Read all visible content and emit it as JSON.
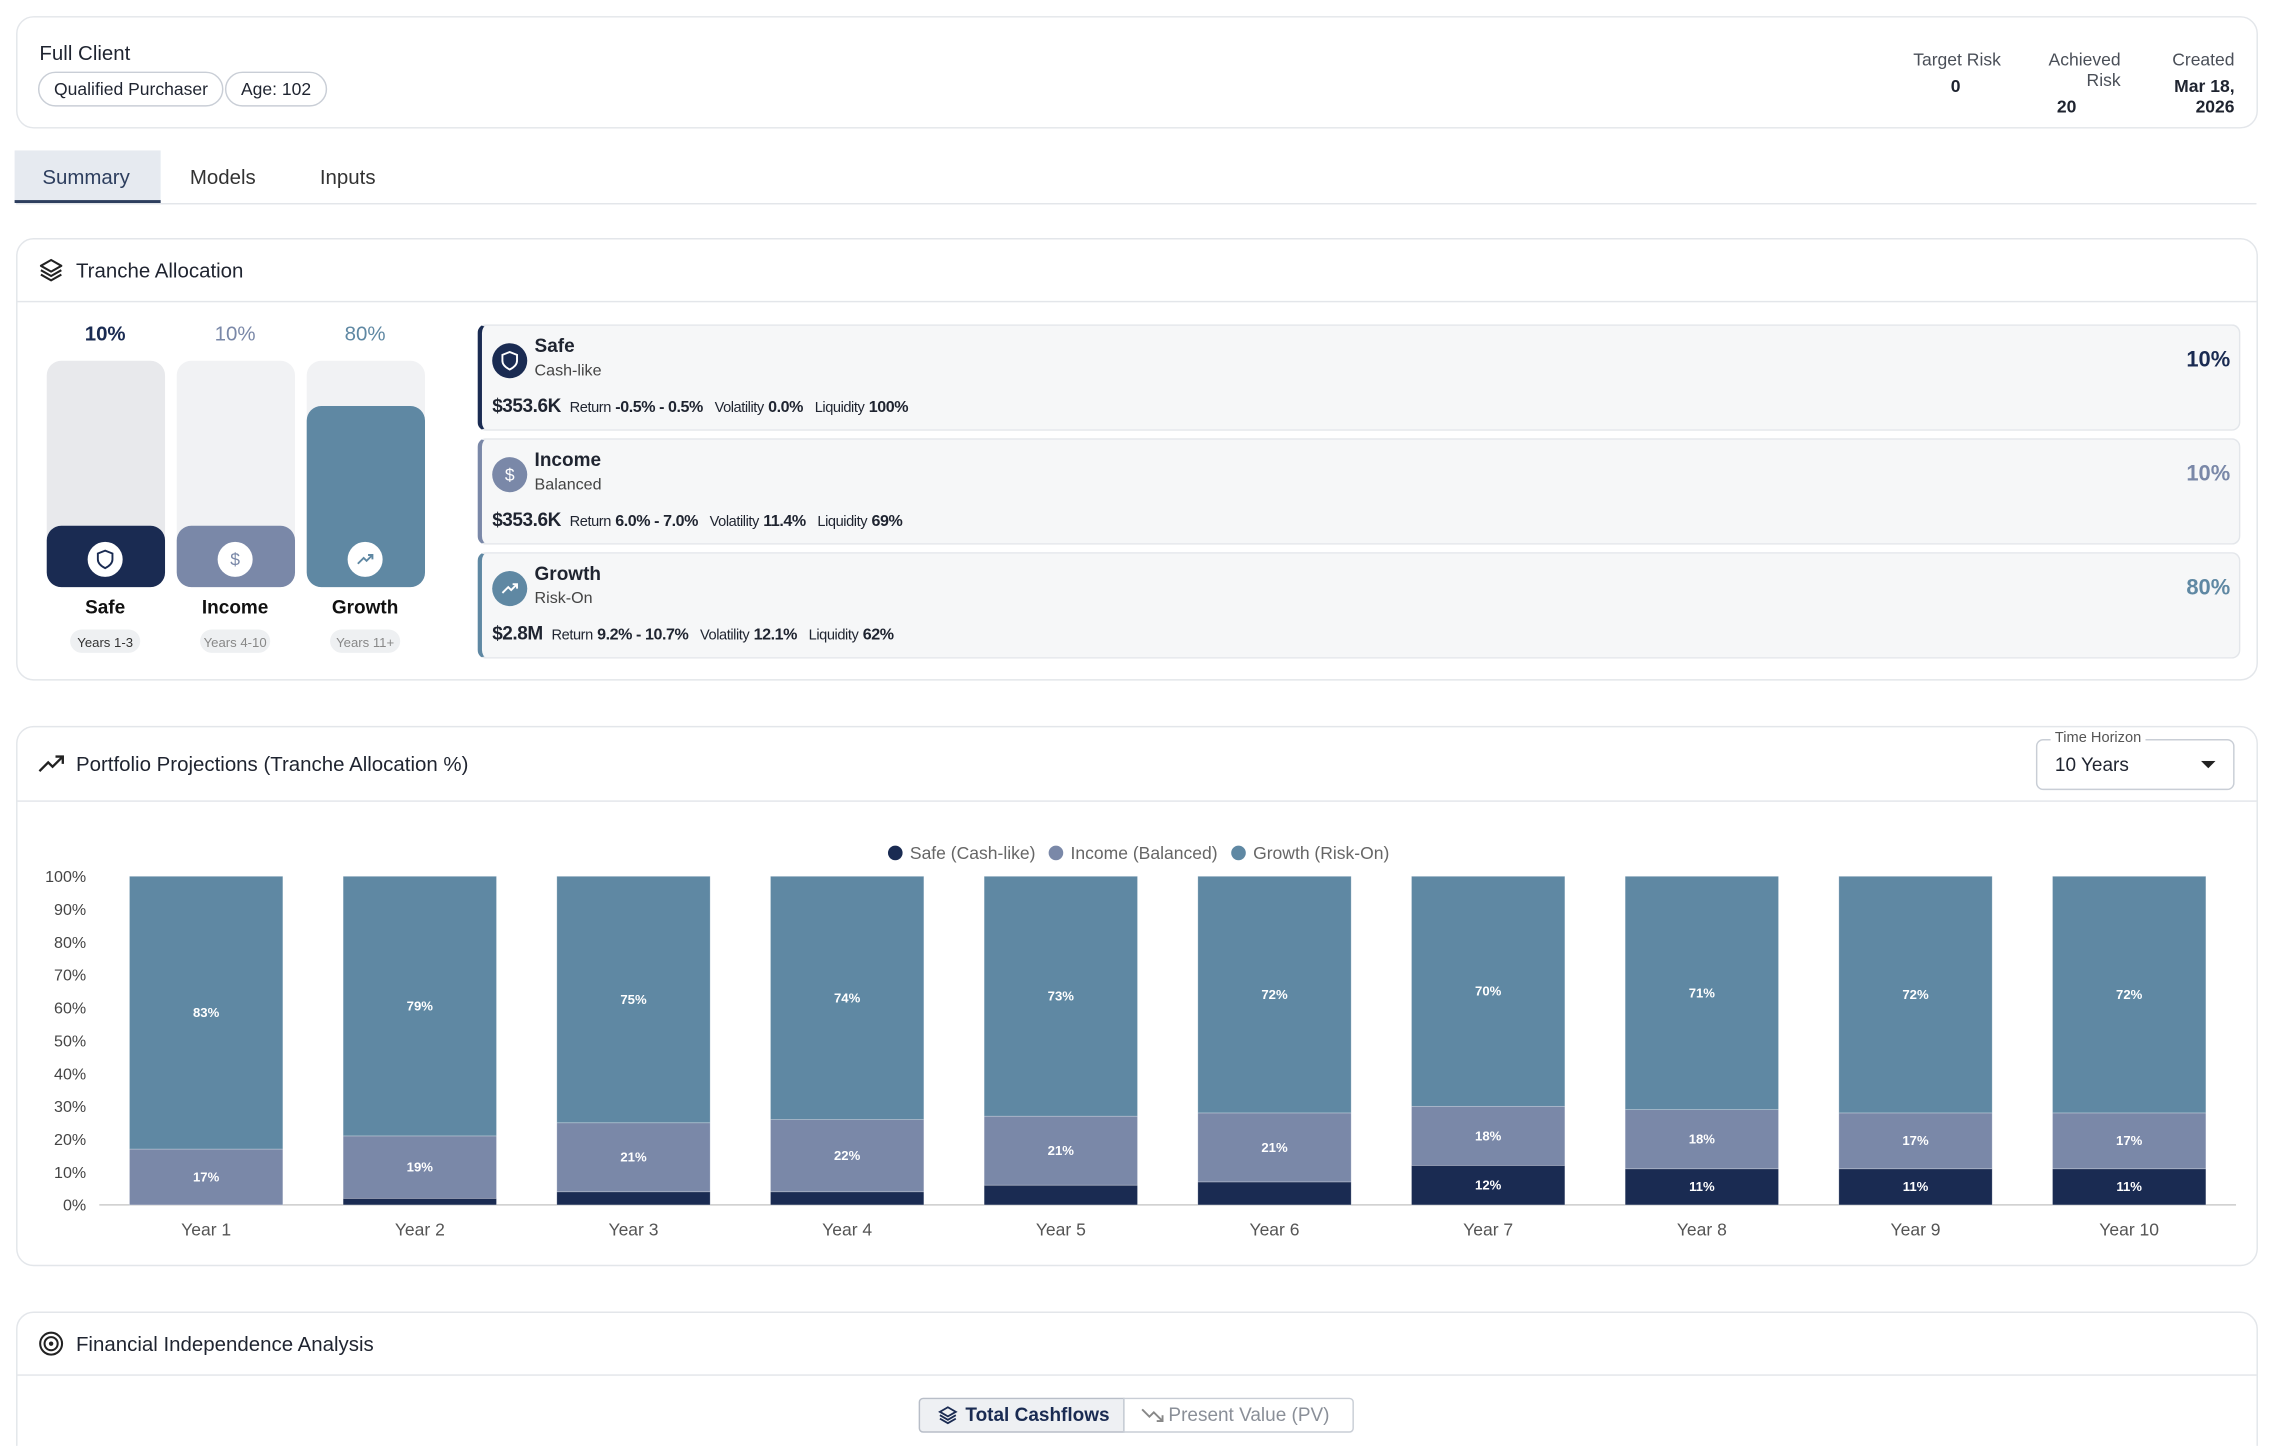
{
  "header": {
    "title": "Full Client",
    "badges": [
      "Qualified Purchaser",
      "Age: 102"
    ],
    "stats": [
      {
        "label": "Target Risk",
        "value": "0"
      },
      {
        "label": "Achieved Risk",
        "value": "20"
      },
      {
        "label": "Created",
        "value": "Mar 18, 2026"
      }
    ]
  },
  "tabs": [
    "Summary",
    "Models",
    "Inputs"
  ],
  "tranche_panel": {
    "title": "Tranche Allocation",
    "metric_labels": [
      "Return",
      "Volatility",
      "Liquidity"
    ],
    "tranches": [
      {
        "name": "Safe",
        "subtitle": "Cash-like",
        "years": "Years 1-3",
        "allocation": {
          "value": 10,
          "label": "10%"
        },
        "amount": "$353.6K",
        "return": "-0.5% - 0.5%",
        "volatility": "0.0%",
        "liquidity": "100%",
        "color": "#1a2b52"
      },
      {
        "name": "Income",
        "subtitle": "Balanced",
        "years": "Years 4-10",
        "allocation": {
          "value": 10,
          "label": "10%"
        },
        "amount": "$353.6K",
        "return": "6.0% - 7.0%",
        "volatility": "11.4%",
        "liquidity": "69%",
        "color": "#7a88a8"
      },
      {
        "name": "Growth",
        "subtitle": "Risk-On",
        "years": "Years 11+",
        "allocation": {
          "value": 80,
          "label": "80%"
        },
        "amount": "$2.8M",
        "return": "9.2% - 10.7%",
        "volatility": "12.1%",
        "liquidity": "62%",
        "color": "#5f88a3"
      }
    ]
  },
  "projections_panel": {
    "title": "Portfolio Projections (Tranche Allocation %)",
    "time_horizon_label": "Time Horizon",
    "time_horizon_value": "10 Years"
  },
  "chart_data": {
    "type": "bar",
    "stacked": true,
    "legend": "top",
    "grid": false,
    "categories": [
      "Year 1",
      "Year 2",
      "Year 3",
      "Year 4",
      "Year 5",
      "Year 6",
      "Year 7",
      "Year 8",
      "Year 9",
      "Year 10"
    ],
    "series": [
      {
        "name": "Safe (Cash-like)",
        "color": "#1a2b52",
        "values": [
          0,
          2,
          4,
          4,
          6,
          7,
          12,
          11,
          11,
          11
        ],
        "value_labels": [
          null,
          null,
          null,
          null,
          null,
          null,
          "12%",
          "11%",
          "11%",
          "11%"
        ]
      },
      {
        "name": "Income (Balanced)",
        "color": "#7a88a8",
        "values": [
          17,
          19,
          21,
          22,
          21,
          21,
          18,
          18,
          17,
          17
        ],
        "value_labels": [
          "17%",
          "19%",
          "21%",
          "22%",
          "21%",
          "21%",
          "18%",
          "18%",
          "17%",
          "17%"
        ]
      },
      {
        "name": "Growth (Risk-On)",
        "color": "#5f88a3",
        "values": [
          83,
          79,
          75,
          74,
          73,
          72,
          70,
          71,
          72,
          72
        ],
        "value_labels": [
          "83%",
          "79%",
          "75%",
          "74%",
          "73%",
          "72%",
          "70%",
          "71%",
          "72%",
          "72%"
        ]
      }
    ],
    "ylim": [
      0,
      100
    ],
    "yticks": [
      {
        "value": 0,
        "label": "0%"
      },
      {
        "value": 10,
        "label": "10%"
      },
      {
        "value": 20,
        "label": "20%"
      },
      {
        "value": 30,
        "label": "30%"
      },
      {
        "value": 40,
        "label": "40%"
      },
      {
        "value": 50,
        "label": "50%"
      },
      {
        "value": 60,
        "label": "60%"
      },
      {
        "value": 70,
        "label": "70%"
      },
      {
        "value": 80,
        "label": "80%"
      },
      {
        "value": 90,
        "label": "90%"
      },
      {
        "value": 100,
        "label": "100%"
      }
    ]
  },
  "fi_panel": {
    "title": "Financial Independence Analysis",
    "toggles": [
      "Total Cashflows",
      "Present Value (PV)"
    ]
  }
}
